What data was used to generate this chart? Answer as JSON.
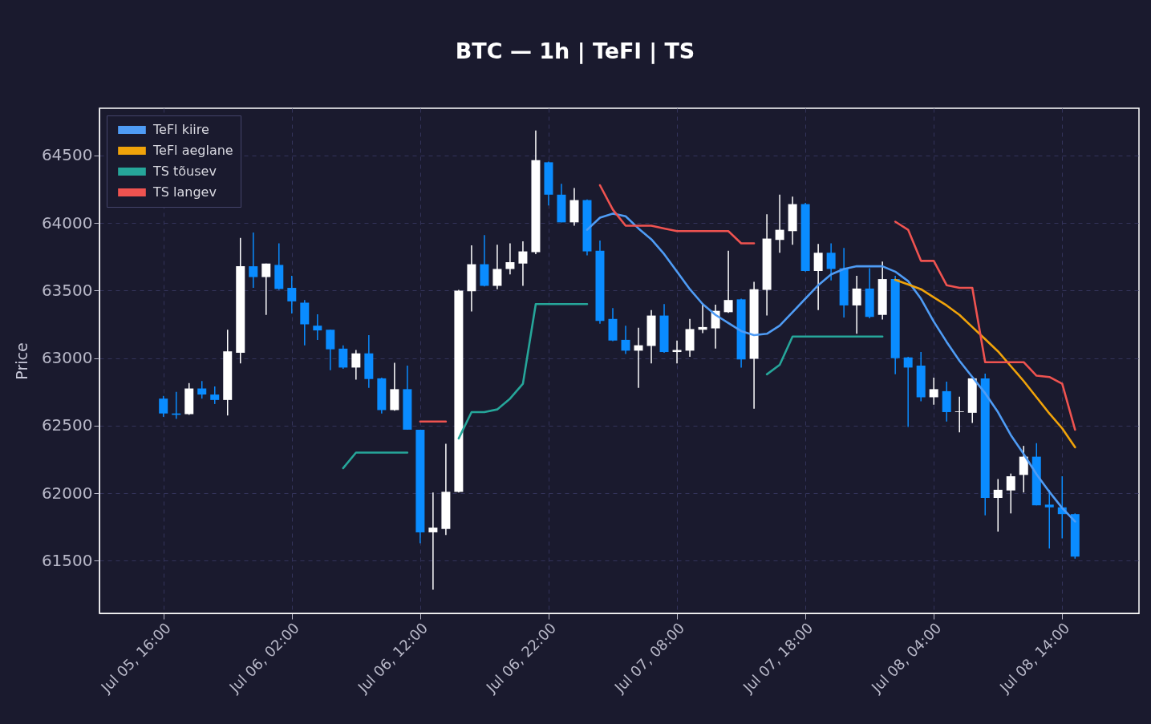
{
  "chart_data": {
    "type": "candlestick",
    "title": "BTC — 1h  |  TeFl  |  TS",
    "ylabel": "Price",
    "x": [
      "--07-05T16:00",
      "--07-05T17:00",
      "--07-05T18:00",
      "--07-05T19:00",
      "--07-05T20:00",
      "--07-05T21:00",
      "--07-05T22:00",
      "--07-05T23:00",
      "--07-06T00:00",
      "--07-06T01:00",
      "--07-06T02:00",
      "--07-06T03:00",
      "--07-06T04:00",
      "--07-06T05:00",
      "--07-06T06:00",
      "--07-06T07:00",
      "--07-06T08:00",
      "--07-06T09:00",
      "--07-06T10:00",
      "--07-06T11:00",
      "--07-06T12:00",
      "--07-06T13:00",
      "--07-06T14:00",
      "--07-06T15:00",
      "--07-06T16:00",
      "--07-06T17:00",
      "--07-06T18:00",
      "--07-06T19:00",
      "--07-06T20:00",
      "--07-06T21:00",
      "--07-06T22:00",
      "--07-06T23:00",
      "--07-07T00:00",
      "--07-07T01:00",
      "--07-07T02:00",
      "--07-07T03:00",
      "--07-07T04:00",
      "--07-07T05:00",
      "--07-07T06:00",
      "--07-07T07:00",
      "--07-07T08:00",
      "--07-07T09:00",
      "--07-07T10:00",
      "--07-07T11:00",
      "--07-07T12:00",
      "--07-07T13:00",
      "--07-07T14:00",
      "--07-07T15:00",
      "--07-07T16:00",
      "--07-07T17:00",
      "--07-07T18:00",
      "--07-07T19:00",
      "--07-07T20:00",
      "--07-07T21:00",
      "--07-07T22:00",
      "--07-07T23:00",
      "--07-08T00:00",
      "--07-08T01:00",
      "--07-08T02:00",
      "--07-08T03:00",
      "--07-08T04:00",
      "--07-08T05:00",
      "--07-08T06:00",
      "--07-08T07:00",
      "--07-08T08:00",
      "--07-08T09:00",
      "--07-08T10:00",
      "--07-08T11:00",
      "--07-08T12:00",
      "--07-08T13:00",
      "--07-08T14:00",
      "--07-08T15:00"
    ],
    "ohlc": [
      [
        62700,
        62720,
        62565,
        62590
      ],
      [
        62590,
        62750,
        62550,
        62580
      ],
      [
        62585,
        62815,
        62580,
        62775
      ],
      [
        62775,
        62830,
        62700,
        62730
      ],
      [
        62730,
        62790,
        62660,
        62690
      ],
      [
        62690,
        63210,
        62575,
        63050
      ],
      [
        63040,
        63890,
        62960,
        63680
      ],
      [
        63680,
        63930,
        63520,
        63600
      ],
      [
        63600,
        63700,
        63320,
        63700
      ],
      [
        63690,
        63850,
        63505,
        63512
      ],
      [
        63520,
        63610,
        63330,
        63420
      ],
      [
        63410,
        63430,
        63095,
        63250
      ],
      [
        63240,
        63325,
        63135,
        63205
      ],
      [
        63210,
        63210,
        62910,
        63065
      ],
      [
        63070,
        63095,
        62920,
        62930
      ],
      [
        62930,
        63060,
        62840,
        63035
      ],
      [
        63035,
        63170,
        62780,
        62845
      ],
      [
        62850,
        62855,
        62590,
        62615
      ],
      [
        62615,
        62965,
        62610,
        62770
      ],
      [
        62770,
        62945,
        62470,
        62470
      ],
      [
        62470,
        62470,
        61630,
        61710
      ],
      [
        61710,
        62005,
        61285,
        61745
      ],
      [
        61735,
        62365,
        61690,
        62010
      ],
      [
        62010,
        63505,
        62005,
        63500
      ],
      [
        63495,
        63835,
        63345,
        63695
      ],
      [
        63695,
        63910,
        63530,
        63535
      ],
      [
        63535,
        63840,
        63510,
        63660
      ],
      [
        63660,
        63850,
        63620,
        63710
      ],
      [
        63700,
        63865,
        63535,
        63790
      ],
      [
        63785,
        64685,
        63770,
        64465
      ],
      [
        64450,
        64455,
        64130,
        64210
      ],
      [
        64210,
        64290,
        64005,
        64005
      ],
      [
        64005,
        64260,
        63980,
        64170
      ],
      [
        64170,
        64175,
        63760,
        63790
      ],
      [
        63795,
        63870,
        63255,
        63275
      ],
      [
        63290,
        63370,
        63125,
        63130
      ],
      [
        63135,
        63240,
        63030,
        63055
      ],
      [
        63055,
        63225,
        62780,
        63095
      ],
      [
        63090,
        63355,
        62960,
        63315
      ],
      [
        63315,
        63400,
        63040,
        63045
      ],
      [
        63045,
        63130,
        62960,
        63060
      ],
      [
        63055,
        63290,
        63010,
        63215
      ],
      [
        63210,
        63400,
        63185,
        63230
      ],
      [
        63220,
        63395,
        63070,
        63350
      ],
      [
        63340,
        63795,
        63335,
        63430
      ],
      [
        63435,
        63440,
        62930,
        62990
      ],
      [
        62995,
        63565,
        62625,
        63510
      ],
      [
        63505,
        64065,
        63315,
        63885
      ],
      [
        63875,
        64210,
        63780,
        63950
      ],
      [
        63940,
        64195,
        63840,
        64140
      ],
      [
        64140,
        64150,
        63640,
        63645
      ],
      [
        63645,
        63845,
        63355,
        63780
      ],
      [
        63780,
        63850,
        63575,
        63660
      ],
      [
        63665,
        63815,
        63300,
        63390
      ],
      [
        63390,
        63610,
        63180,
        63515
      ],
      [
        63515,
        63665,
        63295,
        63305
      ],
      [
        63320,
        63715,
        63285,
        63585
      ],
      [
        63585,
        63610,
        62880,
        63000
      ],
      [
        63005,
        63010,
        62490,
        62930
      ],
      [
        62945,
        63045,
        62680,
        62710
      ],
      [
        62710,
        62855,
        62655,
        62770
      ],
      [
        62755,
        62825,
        62530,
        62600
      ],
      [
        62600,
        62715,
        62450,
        62605
      ],
      [
        62595,
        62850,
        62520,
        62850
      ],
      [
        62850,
        62885,
        61835,
        61965
      ],
      [
        61965,
        62105,
        61715,
        62025
      ],
      [
        62020,
        62145,
        61850,
        62125
      ],
      [
        62135,
        62350,
        62005,
        62270
      ],
      [
        62270,
        62370,
        61910,
        61910
      ],
      [
        61915,
        62025,
        61590,
        61895
      ],
      [
        61895,
        62125,
        61665,
        61845
      ],
      [
        61845,
        61850,
        61515,
        61530
      ]
    ],
    "series": [
      {
        "name": "TeFl kiire",
        "type": "line",
        "color": "#4f9cf5",
        "values": [
          null,
          null,
          null,
          null,
          null,
          null,
          null,
          null,
          null,
          null,
          null,
          null,
          null,
          null,
          null,
          null,
          null,
          null,
          null,
          null,
          null,
          null,
          null,
          null,
          null,
          null,
          null,
          null,
          null,
          null,
          null,
          null,
          null,
          63950,
          64040,
          64070,
          64050,
          63960,
          63880,
          63770,
          63640,
          63510,
          63400,
          63320,
          63260,
          63200,
          63170,
          63180,
          63240,
          63340,
          63440,
          63540,
          63620,
          63660,
          63680,
          63680,
          63680,
          63640,
          63570,
          63440,
          63270,
          63120,
          62980,
          62860,
          62740,
          62600,
          62430,
          62290,
          62140,
          62010,
          61890,
          61790
        ]
      },
      {
        "name": "TeFl aeglane",
        "type": "line",
        "color": "#f0a30a",
        "values": [
          null,
          null,
          null,
          null,
          null,
          null,
          null,
          null,
          null,
          null,
          null,
          null,
          null,
          null,
          null,
          null,
          null,
          null,
          null,
          null,
          null,
          null,
          null,
          null,
          null,
          null,
          null,
          null,
          null,
          null,
          null,
          null,
          null,
          null,
          null,
          null,
          null,
          null,
          null,
          null,
          null,
          null,
          null,
          null,
          null,
          null,
          null,
          null,
          null,
          null,
          null,
          null,
          null,
          null,
          null,
          null,
          null,
          63580,
          63545,
          63510,
          63450,
          63390,
          63320,
          63230,
          63140,
          63050,
          62940,
          62830,
          62710,
          62590,
          62480,
          62340
        ]
      },
      {
        "name": "TS tõusev",
        "type": "line",
        "color": "#26a69a",
        "values": [
          null,
          null,
          null,
          null,
          null,
          null,
          null,
          null,
          null,
          null,
          null,
          null,
          null,
          null,
          62185,
          62300,
          62300,
          62300,
          62300,
          62300,
          null,
          null,
          null,
          62405,
          62600,
          62600,
          62620,
          62700,
          62810,
          63400,
          63400,
          63400,
          63400,
          63400,
          null,
          null,
          null,
          null,
          null,
          null,
          null,
          null,
          null,
          null,
          null,
          null,
          null,
          62880,
          62950,
          63160,
          63160,
          63160,
          63160,
          63160,
          63160,
          63160,
          63160,
          null,
          null,
          null,
          null,
          null,
          null,
          null,
          null,
          null,
          null,
          null,
          null,
          null,
          null,
          null
        ]
      },
      {
        "name": "TS langev",
        "type": "line",
        "color": "#ef5350",
        "values": [
          null,
          null,
          null,
          null,
          null,
          null,
          null,
          null,
          null,
          null,
          null,
          null,
          null,
          null,
          null,
          null,
          null,
          null,
          null,
          null,
          62530,
          62530,
          62530,
          null,
          null,
          null,
          null,
          null,
          null,
          null,
          null,
          null,
          null,
          null,
          64280,
          64100,
          63980,
          63980,
          63980,
          63960,
          63940,
          63940,
          63940,
          63940,
          63940,
          63850,
          63850,
          null,
          null,
          null,
          null,
          null,
          null,
          null,
          null,
          null,
          null,
          64010,
          63950,
          63720,
          63720,
          63540,
          63520,
          63520,
          62970,
          62970,
          62970,
          62970,
          62870,
          62860,
          62810,
          62470
        ]
      }
    ],
    "xlim": [
      "--07-05T11:20",
      "--07-08T19:40"
    ],
    "xticks": [
      {
        "value": "--07-05T16:00",
        "label": "Jul 05, 16:00"
      },
      {
        "value": "--07-06T02:00",
        "label": "Jul 06, 02:00"
      },
      {
        "value": "--07-06T12:00",
        "label": "Jul 06, 12:00"
      },
      {
        "value": "--07-06T22:00",
        "label": "Jul 06, 22:00"
      },
      {
        "value": "--07-07T08:00",
        "label": "Jul 07, 08:00"
      },
      {
        "value": "--07-07T18:00",
        "label": "Jul 07, 18:00"
      },
      {
        "value": "--07-08T04:00",
        "label": "Jul 08, 04:00"
      },
      {
        "value": "--07-08T14:00",
        "label": "Jul 08, 14:00"
      }
    ],
    "ylim": [
      61110,
      64850
    ],
    "yticks": [
      61500,
      62000,
      62500,
      63000,
      63500,
      64000,
      64500
    ],
    "grid": true,
    "legend": "top left",
    "line_style": "solid"
  }
}
